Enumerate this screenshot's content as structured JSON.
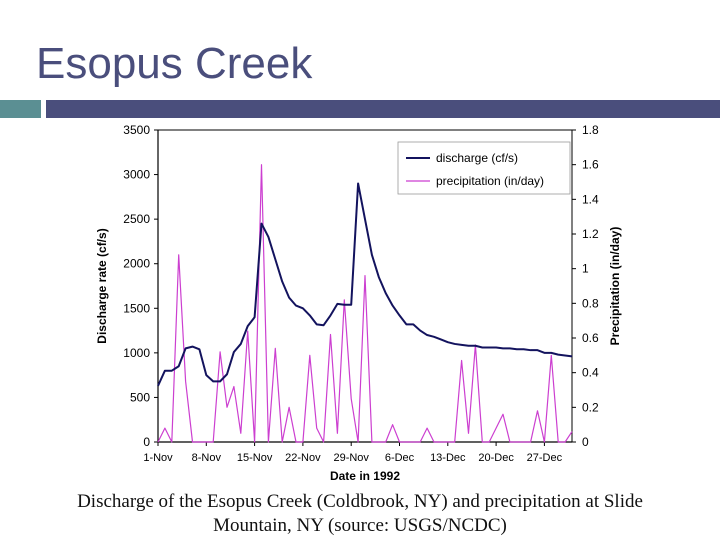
{
  "slide": {
    "title": "Esopus Creek",
    "caption": "Discharge of the Esopus Creek (Coldbrook, NY) and precipitation at Slide Mountain, NY (source: USGS/NCDC)"
  },
  "chart_data": {
    "type": "line",
    "xlabel": "Date in 1992",
    "ylabel": "Discharge rate (cf/s)",
    "y2label": "Precipitation (in/day)",
    "x_ticks": [
      "1-Nov",
      "8-Nov",
      "15-Nov",
      "22-Nov",
      "29-Nov",
      "6-Dec",
      "13-Dec",
      "20-Dec",
      "27-Dec"
    ],
    "x_range": [
      "1992-11-01",
      "1992-12-31"
    ],
    "y_ticks": [
      0,
      500,
      1000,
      1500,
      2000,
      2500,
      3000,
      3500
    ],
    "ylim": [
      0,
      3500
    ],
    "y2_ticks": [
      0,
      0.2,
      0.4,
      0.6,
      0.8,
      1,
      1.2,
      1.4,
      1.6,
      1.8
    ],
    "y2lim": [
      0,
      1.8
    ],
    "grid": false,
    "legend_position": "top-right",
    "series": [
      {
        "name": "discharge (cf/s)",
        "axis": "left",
        "color": "#13135e",
        "x": [
          "1992-11-01",
          "1992-11-02",
          "1992-11-03",
          "1992-11-04",
          "1992-11-05",
          "1992-11-06",
          "1992-11-07",
          "1992-11-08",
          "1992-11-09",
          "1992-11-10",
          "1992-11-11",
          "1992-11-12",
          "1992-11-13",
          "1992-11-14",
          "1992-11-15",
          "1992-11-16",
          "1992-11-17",
          "1992-11-18",
          "1992-11-19",
          "1992-11-20",
          "1992-11-21",
          "1992-11-22",
          "1992-11-23",
          "1992-11-24",
          "1992-11-25",
          "1992-11-26",
          "1992-11-27",
          "1992-11-28",
          "1992-11-29",
          "1992-11-30",
          "1992-12-01",
          "1992-12-02",
          "1992-12-03",
          "1992-12-04",
          "1992-12-05",
          "1992-12-06",
          "1992-12-07",
          "1992-12-08",
          "1992-12-09",
          "1992-12-10",
          "1992-12-11",
          "1992-12-12",
          "1992-12-13",
          "1992-12-14",
          "1992-12-15",
          "1992-12-16",
          "1992-12-17",
          "1992-12-18",
          "1992-12-19",
          "1992-12-20",
          "1992-12-21",
          "1992-12-22",
          "1992-12-23",
          "1992-12-24",
          "1992-12-25",
          "1992-12-26",
          "1992-12-27",
          "1992-12-28",
          "1992-12-29",
          "1992-12-30",
          "1992-12-31"
        ],
        "values": [
          630,
          800,
          800,
          850,
          1050,
          1070,
          1040,
          750,
          680,
          680,
          760,
          1010,
          1100,
          1300,
          1400,
          2450,
          2300,
          2050,
          1800,
          1620,
          1530,
          1500,
          1420,
          1320,
          1310,
          1420,
          1550,
          1540,
          1540,
          2900,
          2500,
          2100,
          1850,
          1670,
          1530,
          1420,
          1320,
          1320,
          1250,
          1200,
          1180,
          1150,
          1120,
          1100,
          1090,
          1080,
          1080,
          1060,
          1060,
          1060,
          1050,
          1050,
          1040,
          1040,
          1030,
          1030,
          1000,
          1000,
          980,
          970,
          960
        ]
      },
      {
        "name": "precipitation (in/day)",
        "axis": "right",
        "color": "#cc3fd0",
        "x": [
          "1992-11-01",
          "1992-11-02",
          "1992-11-03",
          "1992-11-04",
          "1992-11-05",
          "1992-11-06",
          "1992-11-07",
          "1992-11-08",
          "1992-11-09",
          "1992-11-10",
          "1992-11-11",
          "1992-11-12",
          "1992-11-13",
          "1992-11-14",
          "1992-11-15",
          "1992-11-16",
          "1992-11-17",
          "1992-11-18",
          "1992-11-19",
          "1992-11-20",
          "1992-11-21",
          "1992-11-22",
          "1992-11-23",
          "1992-11-24",
          "1992-11-25",
          "1992-11-26",
          "1992-11-27",
          "1992-11-28",
          "1992-11-29",
          "1992-11-30",
          "1992-12-01",
          "1992-12-02",
          "1992-12-03",
          "1992-12-04",
          "1992-12-05",
          "1992-12-06",
          "1992-12-07",
          "1992-12-08",
          "1992-12-09",
          "1992-12-10",
          "1992-12-11",
          "1992-12-12",
          "1992-12-13",
          "1992-12-14",
          "1992-12-15",
          "1992-12-16",
          "1992-12-17",
          "1992-12-18",
          "1992-12-19",
          "1992-12-20",
          "1992-12-21",
          "1992-12-22",
          "1992-12-23",
          "1992-12-24",
          "1992-12-25",
          "1992-12-26",
          "1992-12-27",
          "1992-12-28",
          "1992-12-29",
          "1992-12-30",
          "1992-12-31"
        ],
        "values": [
          0,
          0.08,
          0,
          1.08,
          0.35,
          0,
          0,
          0,
          0,
          0.52,
          0.2,
          0.32,
          0.05,
          0.64,
          0,
          1.6,
          0,
          0.54,
          0,
          0.2,
          0,
          0,
          0.5,
          0.08,
          0,
          0.62,
          0.05,
          0.82,
          0.25,
          0,
          0.96,
          0,
          0,
          0,
          0.1,
          0,
          0,
          0,
          0,
          0.08,
          0,
          0,
          0,
          0,
          0.47,
          0.05,
          0.56,
          0,
          0,
          0.08,
          0.16,
          0,
          0,
          0,
          0,
          0.18,
          0,
          0.5,
          0,
          0,
          0.06
        ]
      }
    ]
  }
}
